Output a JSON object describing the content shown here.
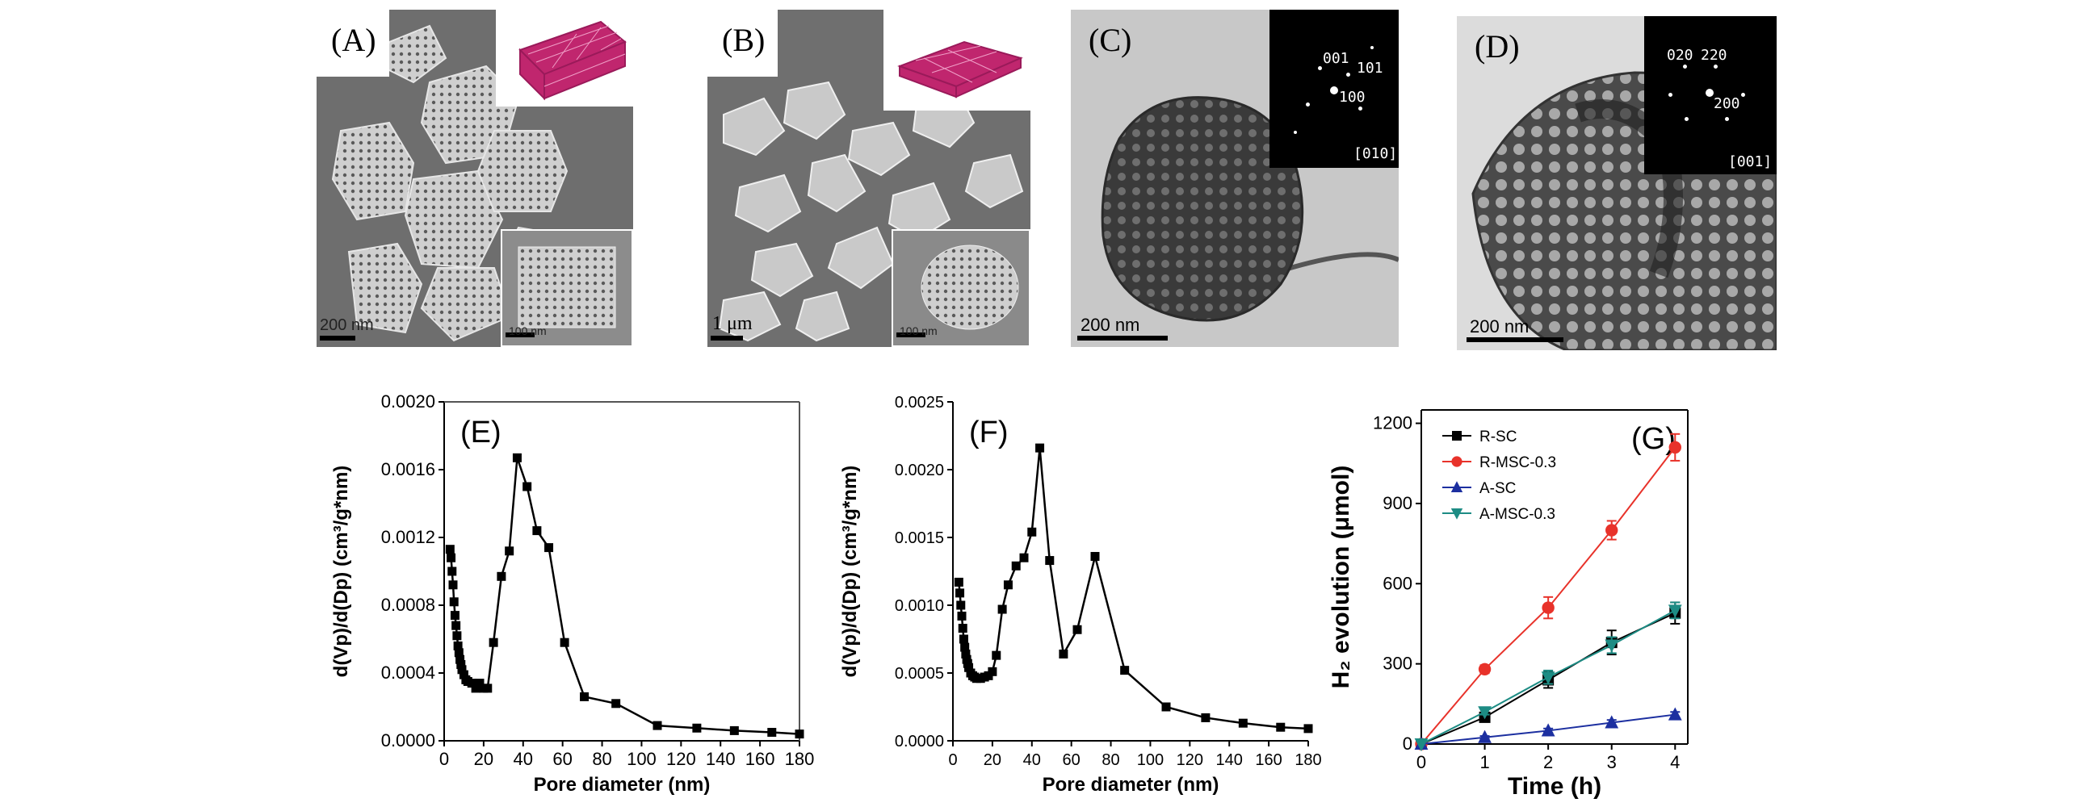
{
  "panels": {
    "A": {
      "label": "(A)",
      "scale_main": "200 nm",
      "scale_inset": "100 nm"
    },
    "B": {
      "label": "(B)",
      "scale_main": "1 μm",
      "scale_inset": "100 nm"
    },
    "C": {
      "label": "(C)",
      "scale_main": "200 nm",
      "saed": {
        "zone": "[010]",
        "spots": [
          "001",
          "101",
          "100"
        ]
      }
    },
    "D": {
      "label": "(D)",
      "scale_main": "200 nm",
      "saed": {
        "zone": "[001]",
        "spots": [
          "020",
          "220",
          "200"
        ]
      }
    }
  },
  "chart_data": [
    {
      "id": "E",
      "label": "(E)",
      "type": "line",
      "xlabel": "Pore diameter (nm)",
      "ylabel": "d(Vp)/d(Dp) (cm³/g*nm)",
      "xlim": [
        0,
        180
      ],
      "ylim": [
        0,
        0.002
      ],
      "xticks": [
        "0",
        "20",
        "40",
        "60",
        "80",
        "100",
        "120",
        "140",
        "160",
        "180"
      ],
      "yticks": [
        "0.0000",
        "0.0004",
        "0.0008",
        "0.0012",
        "0.0016",
        "0.0020"
      ],
      "x": [
        3,
        3.5,
        4,
        4.5,
        5,
        5.5,
        6,
        6.5,
        7,
        7.5,
        8,
        8.5,
        9,
        10,
        11,
        12,
        14,
        16,
        18,
        20,
        22,
        25,
        29,
        33,
        37,
        42,
        47,
        53,
        61,
        71,
        87,
        108,
        128,
        147,
        166,
        180
      ],
      "y": [
        0.00113,
        0.00108,
        0.001,
        0.00092,
        0.00082,
        0.00074,
        0.00068,
        0.00062,
        0.00056,
        0.00052,
        0.00048,
        0.00045,
        0.00042,
        0.00039,
        0.00036,
        0.00035,
        0.00034,
        0.00031,
        0.00034,
        0.00031,
        0.00031,
        0.00058,
        0.00097,
        0.00112,
        0.00167,
        0.0015,
        0.00124,
        0.00114,
        0.00058,
        0.00026,
        0.00022,
        9e-05,
        7.5e-05,
        6e-05,
        5e-05,
        4e-05
      ],
      "grid": false
    },
    {
      "id": "F",
      "label": "(F)",
      "type": "line",
      "xlabel": "Pore diameter (nm)",
      "ylabel": "d(Vp)/d(Dp) (cm³/g*nm)",
      "xlim": [
        0,
        180
      ],
      "ylim": [
        0,
        0.0025
      ],
      "xticks": [
        "0",
        "20",
        "40",
        "60",
        "80",
        "100",
        "120",
        "140",
        "160",
        "180"
      ],
      "yticks": [
        "0.0000",
        "0.0005",
        "0.0010",
        "0.0015",
        "0.0020",
        "0.0025"
      ],
      "x": [
        3,
        3.5,
        4,
        4.5,
        5,
        5.5,
        6,
        6.5,
        7,
        7.5,
        8,
        9,
        10,
        11,
        12,
        14,
        16,
        18,
        20,
        22,
        25,
        28,
        32,
        36,
        40,
        44,
        49,
        56,
        63,
        72,
        87,
        108,
        128,
        147,
        166,
        180
      ],
      "y": [
        0.00117,
        0.00109,
        0.001,
        0.00092,
        0.00083,
        0.00075,
        0.00069,
        0.00064,
        0.0006,
        0.00057,
        0.00054,
        0.0005,
        0.00048,
        0.00047,
        0.00046,
        0.00046,
        0.00047,
        0.00048,
        0.00051,
        0.00063,
        0.00097,
        0.00115,
        0.00129,
        0.00135,
        0.00154,
        0.00216,
        0.00133,
        0.00064,
        0.00082,
        0.00136,
        0.00052,
        0.00025,
        0.00017,
        0.00013,
        0.0001,
        9e-05
      ],
      "grid": false
    },
    {
      "id": "G",
      "label": "(G)",
      "type": "line",
      "xlabel": "Time (h)",
      "ylabel": "H₂ evolution (μmol)",
      "xlim": [
        0,
        4.2
      ],
      "ylim": [
        0,
        1250
      ],
      "xticks": [
        "0",
        "1",
        "2",
        "3",
        "4"
      ],
      "yticks": [
        "0",
        "300",
        "600",
        "900",
        "1200"
      ],
      "legend_position": "top-left",
      "series": [
        {
          "name": "R-SC",
          "color": "#000000",
          "marker": "square",
          "x": [
            0,
            1,
            2,
            3,
            4
          ],
          "y": [
            0,
            100,
            240,
            380,
            490
          ],
          "err": [
            0,
            15,
            30,
            45,
            40
          ]
        },
        {
          "name": "R-MSC-0.3",
          "color": "#e8322a",
          "marker": "circle",
          "x": [
            0,
            1,
            2,
            3,
            4
          ],
          "y": [
            0,
            280,
            510,
            800,
            1110
          ],
          "err": [
            0,
            15,
            40,
            35,
            50
          ]
        },
        {
          "name": "A-SC",
          "color": "#1c2fa0",
          "marker": "triangle-up",
          "x": [
            0,
            1,
            2,
            3,
            4
          ],
          "y": [
            0,
            25,
            50,
            80,
            110
          ],
          "err": [
            0,
            5,
            8,
            10,
            10
          ]
        },
        {
          "name": "A-MSC-0.3",
          "color": "#1d8c84",
          "marker": "triangle-down",
          "x": [
            0,
            1,
            2,
            3,
            4
          ],
          "y": [
            0,
            120,
            250,
            370,
            500
          ],
          "err": [
            0,
            10,
            25,
            30,
            30
          ]
        }
      ],
      "grid": false
    }
  ]
}
